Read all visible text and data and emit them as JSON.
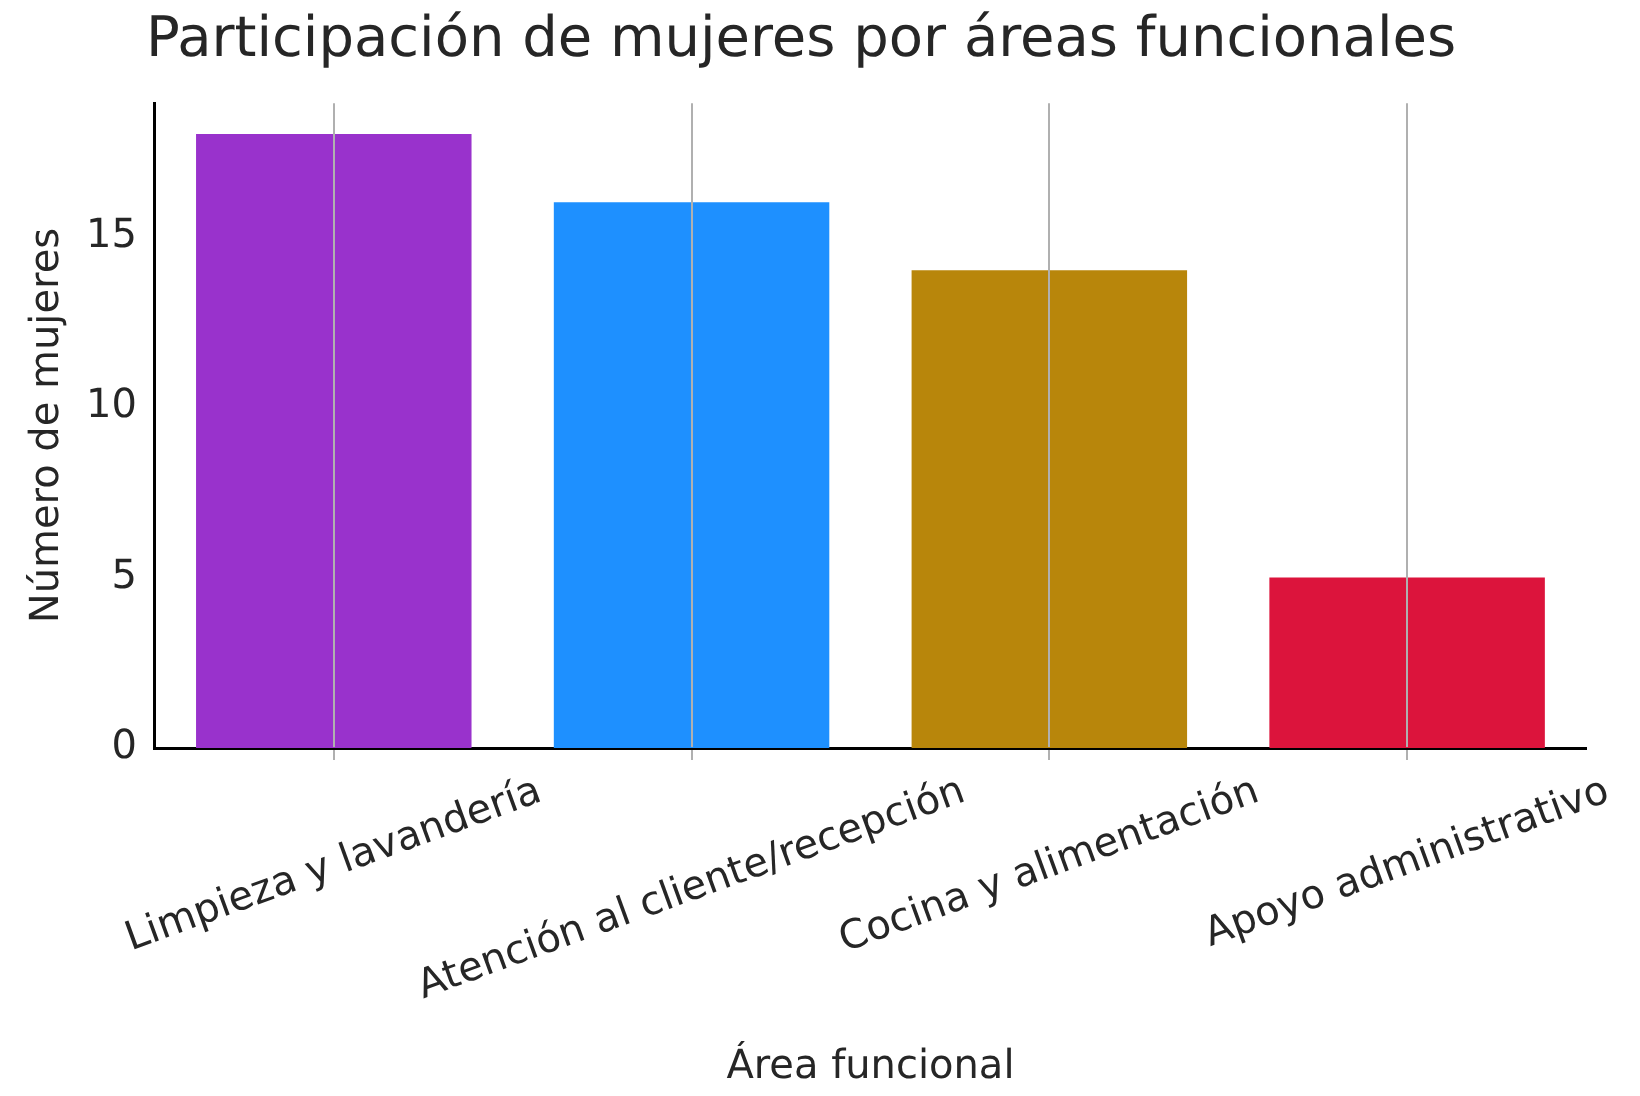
{
  "chart_data": {
    "type": "bar",
    "title": "Participación de mujeres por áreas funcionales",
    "xlabel": "Área funcional",
    "ylabel": "Número de mujeres",
    "categories": [
      "Limpieza y lavandería",
      "Atención al cliente/recepción",
      "Cocina y alimentación",
      "Apoyo administrativo"
    ],
    "values": [
      18,
      16,
      14,
      5
    ],
    "colors": [
      "#9932cc",
      "#1e90ff",
      "#b8860b",
      "#dc143c"
    ],
    "ylim": [
      0,
      18.9
    ],
    "yticks": [
      0,
      5,
      10,
      15
    ],
    "grid": "x",
    "legend": false
  }
}
